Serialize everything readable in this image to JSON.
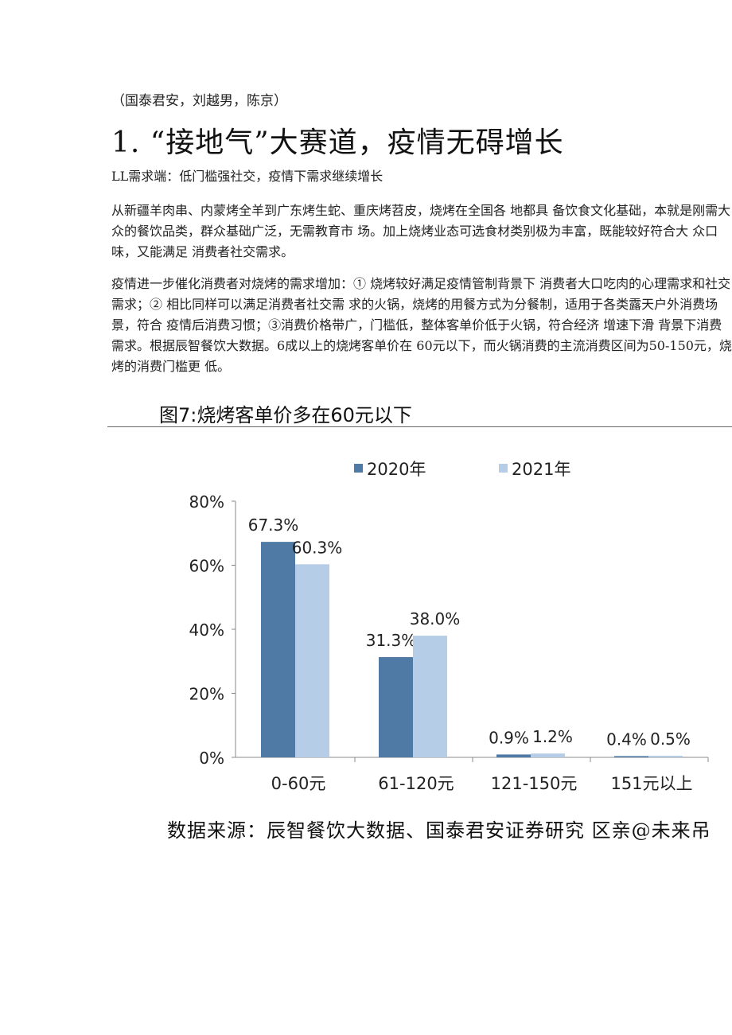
{
  "document": {
    "source_line": "（国泰君安，刘越男，陈京）",
    "heading": "1. “接地气”大赛道，疫情无碍增长",
    "subheading": "LL需求端：低门槛强社交，疫情下需求继续增长",
    "paragraph1": "从新疆羊肉串、内蒙烤全羊到广东烤生蛇、重庆烤苕皮，烧烤在全国各 地都具 备饮食文化基础，本就是刚需大众的餐饮品类，群众基础广泛，无需教育市 场。加上烧烤业态可选食材类别极为丰富，既能较好符合大 众口味，又能满足 消费者社交需求。",
    "paragraph2": "疫情进一步催化消费者对烧烤的需求增加：① 烧烤较好满足疫情管制背景下 消费者大口吃肉的心理需求和社交需求；② 相比同样可以满足消费者社交需 求的火锅，烧烤的用餐方式为分餐制，适用于各类露天户外消费场景，符合 疫情后消费习惯；③消费价格带广，门槛低，整体客单价低于火锅，符合经济 增速下滑 背景下消费需求。根据辰智餐饮大数据。6成以上的烧烤客单价在 60元以下，而火锅消费的主流消费区间为50-150元，烧烤的消费门槛更 低。",
    "figure_title": "图7:烧烤客单价多在60元以下",
    "footnote": "数据来源：辰智餐饮大数据、国泰君安证券研究 区亲@未来吊"
  },
  "chart_data": {
    "type": "bar",
    "title": "",
    "xlabel": "",
    "ylabel": "",
    "categories": [
      "0-60元",
      "61-120元",
      "121-150元",
      "151元以上"
    ],
    "series": [
      {
        "name": "2020年",
        "values": [
          67.3,
          31.3,
          0.9,
          0.4
        ],
        "labels": [
          "67.3%",
          "31.3%",
          "0.9%",
          "0.4%"
        ],
        "color": "#4f7aa5"
      },
      {
        "name": "2021年",
        "values": [
          60.3,
          38.0,
          1.2,
          0.5
        ],
        "labels": [
          "60.3%",
          "38.0%",
          "1.2%",
          "0.5%"
        ],
        "color": "#b6cde8"
      }
    ],
    "ylim": [
      0,
      80
    ],
    "yticks": [
      "0%",
      "20%",
      "40%",
      "60%",
      "80%"
    ],
    "ytick_values": [
      0,
      20,
      40,
      60,
      80
    ],
    "legend_position": "top",
    "grid": false
  }
}
